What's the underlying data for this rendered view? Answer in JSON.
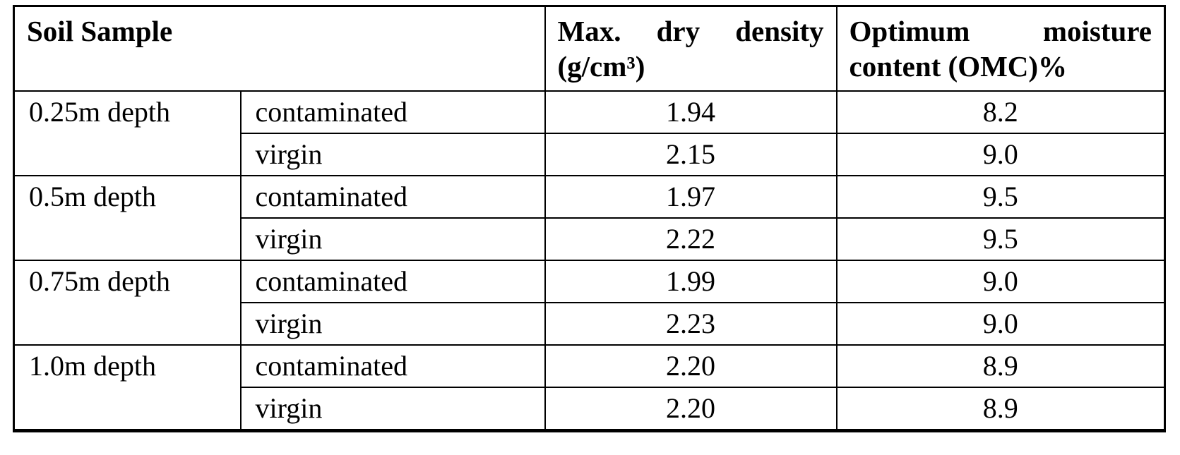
{
  "table": {
    "header": {
      "soil_sample": "Soil Sample",
      "density_line1": "Max. dry density",
      "density_line2": "(g/cm³)",
      "omc_line1": "Optimum moisture",
      "omc_line2": "content (OMC)%"
    },
    "groups": [
      {
        "depth": "0.25m depth",
        "rows": [
          {
            "condition": "contaminated",
            "density": "1.94",
            "omc": "8.2"
          },
          {
            "condition": "virgin",
            "density": "2.15",
            "omc": "9.0"
          }
        ]
      },
      {
        "depth": "0.5m depth",
        "rows": [
          {
            "condition": "contaminated",
            "density": "1.97",
            "omc": "9.5"
          },
          {
            "condition": "virgin",
            "density": "2.22",
            "omc": "9.5"
          }
        ]
      },
      {
        "depth": "0.75m depth",
        "rows": [
          {
            "condition": "contaminated",
            "density": "1.99",
            "omc": "9.0"
          },
          {
            "condition": "virgin",
            "density": "2.23",
            "omc": "9.0"
          }
        ]
      },
      {
        "depth": "1.0m depth",
        "rows": [
          {
            "condition": "contaminated",
            "density": "2.20",
            "omc": "8.9"
          },
          {
            "condition": "virgin",
            "density": "2.20",
            "omc": "8.9"
          }
        ]
      }
    ]
  },
  "colors": {
    "border": "#000000",
    "text": "#000000",
    "background": "#ffffff"
  }
}
